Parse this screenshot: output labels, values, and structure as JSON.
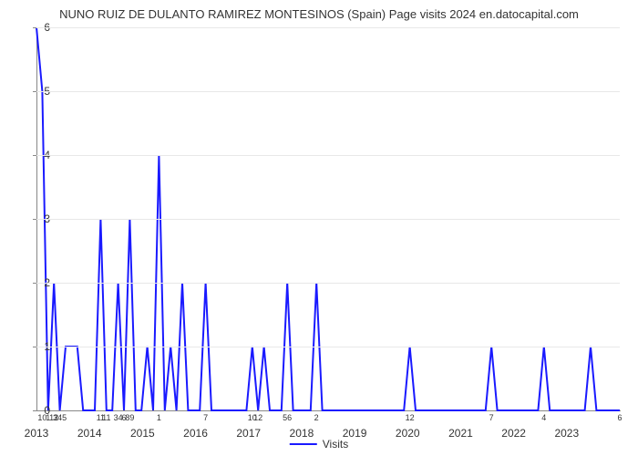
{
  "chart": {
    "type": "line",
    "title": "NUNO RUIZ DE DULANTO RAMIREZ MONTESINOS (Spain) Page visits 2024 en.datocapital.com",
    "title_fontsize": 13,
    "title_color": "#333333",
    "background_color": "#ffffff",
    "line_color": "#1a1aff",
    "line_width": 2,
    "grid_color": "#e8e8e8",
    "axis_color": "#888888",
    "ylim": [
      0,
      6
    ],
    "yticks": [
      0,
      1,
      2,
      3,
      4,
      5,
      6
    ],
    "year_labels": [
      "2013",
      "2014",
      "2015",
      "2016",
      "2017",
      "2018",
      "2019",
      "2020",
      "2021",
      "2022",
      "2023"
    ],
    "legend_label": "Visits",
    "values": [
      6,
      5,
      0,
      2,
      0,
      1,
      1,
      1,
      0,
      0,
      0,
      3,
      0,
      0,
      2,
      0,
      3,
      0,
      0,
      1,
      0,
      4,
      0,
      1,
      0,
      2,
      0,
      0,
      0,
      2,
      0,
      0,
      0,
      0,
      0,
      0,
      0,
      1,
      0,
      1,
      0,
      0,
      0,
      2,
      0,
      0,
      0,
      0,
      2,
      0,
      0,
      0,
      0,
      0,
      0,
      0,
      0,
      0,
      0,
      0,
      0,
      0,
      0,
      0,
      1,
      0,
      0,
      0,
      0,
      0,
      0,
      0,
      0,
      0,
      0,
      0,
      0,
      0,
      1,
      0,
      0,
      0,
      0,
      0,
      0,
      0,
      0,
      1,
      0,
      0,
      0,
      0,
      0,
      0,
      0,
      1,
      0,
      0,
      0,
      0,
      0
    ],
    "point_labels": [
      {
        "i": 1,
        "t": "10"
      },
      {
        "i": 2,
        "t": "1"
      },
      {
        "i": 3,
        "t": "12"
      },
      {
        "i": 4,
        "t": "345"
      },
      {
        "i": 11,
        "t": "11"
      },
      {
        "i": 12,
        "t": "11"
      },
      {
        "i": 14,
        "t": "34"
      },
      {
        "i": 15,
        "t": "6"
      },
      {
        "i": 16,
        "t": "89"
      },
      {
        "i": 21,
        "t": "1"
      },
      {
        "i": 29,
        "t": "7"
      },
      {
        "i": 37,
        "t": "10"
      },
      {
        "i": 38,
        "t": "12"
      },
      {
        "i": 43,
        "t": "56"
      },
      {
        "i": 48,
        "t": "2"
      },
      {
        "i": 64,
        "t": "12"
      },
      {
        "i": 78,
        "t": "7"
      },
      {
        "i": 87,
        "t": "4"
      },
      {
        "i": 100,
        "t": "6"
      }
    ]
  }
}
